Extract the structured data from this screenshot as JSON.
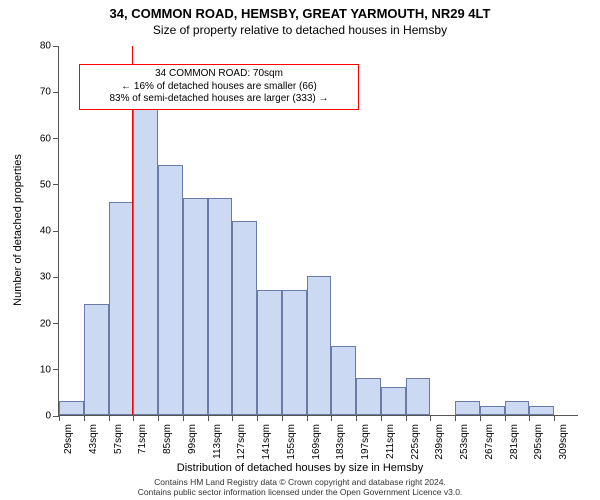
{
  "title": "34, COMMON ROAD, HEMSBY, GREAT YARMOUTH, NR29 4LT",
  "subtitle": "Size of property relative to detached houses in Hemsby",
  "yaxis_title": "Number of detached properties",
  "xaxis_title": "Distribution of detached houses by size in Hemsby",
  "footer_line1": "Contains HM Land Registry data © Crown copyright and database right 2024.",
  "footer_line2": "Contains public sector information licensed under the Open Government Licence v3.0.",
  "chart": {
    "type": "histogram",
    "ylim": [
      0,
      80
    ],
    "yticks": [
      0,
      10,
      20,
      30,
      40,
      50,
      60,
      70,
      80
    ],
    "x_labels": [
      "29sqm",
      "43sqm",
      "57sqm",
      "71sqm",
      "85sqm",
      "99sqm",
      "113sqm",
      "127sqm",
      "141sqm",
      "155sqm",
      "169sqm",
      "183sqm",
      "197sqm",
      "211sqm",
      "225sqm",
      "239sqm",
      "253sqm",
      "267sqm",
      "281sqm",
      "295sqm",
      "309sqm"
    ],
    "values": [
      3,
      24,
      46,
      67,
      54,
      47,
      47,
      42,
      27,
      27,
      30,
      15,
      8,
      6,
      8,
      0,
      3,
      2,
      3,
      2,
      0
    ],
    "bar_fill": "#ccd9f2",
    "bar_stroke": "#6a7ba8",
    "background": "#ffffff",
    "axis_color": "#555555",
    "bar_width_ratio": 1.0
  },
  "marker": {
    "color": "#ff0000",
    "x_value_sqm": 70,
    "callout_lines": [
      "34 COMMON ROAD: 70sqm",
      "← 16% of detached houses are smaller (66)",
      "83% of semi-detached houses are larger (333) →"
    ]
  }
}
